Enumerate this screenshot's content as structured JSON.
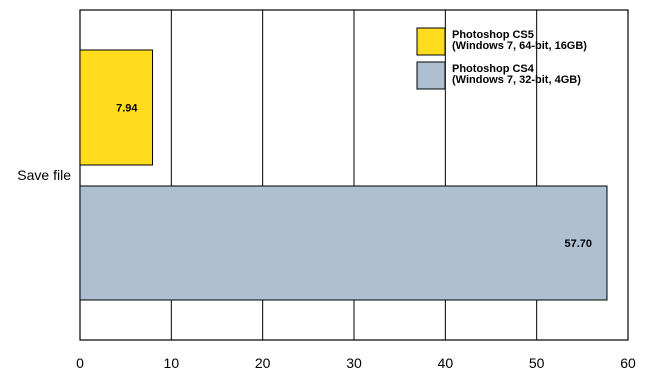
{
  "chart_data": {
    "type": "bar",
    "orientation": "horizontal",
    "categories": [
      "Save file"
    ],
    "series": [
      {
        "name_lines": [
          "Photoshop CS5",
          "(Windows 7, 64-bit, 16GB)"
        ],
        "values": [
          7.94
        ],
        "value_labels": [
          "7.94"
        ],
        "color": "#FFDC1E"
      },
      {
        "name_lines": [
          "Photoshop CS4",
          "(Windows 7, 32-bit, 4GB)"
        ],
        "values": [
          57.7
        ],
        "value_labels": [
          "57.70"
        ],
        "color": "#ADBFD1"
      }
    ],
    "xlim": [
      0,
      60
    ],
    "xticks": [
      0,
      10,
      20,
      30,
      40,
      50,
      60
    ],
    "grid": true,
    "legend_position": "top-right",
    "title": "",
    "xlabel": "",
    "ylabel": ""
  }
}
